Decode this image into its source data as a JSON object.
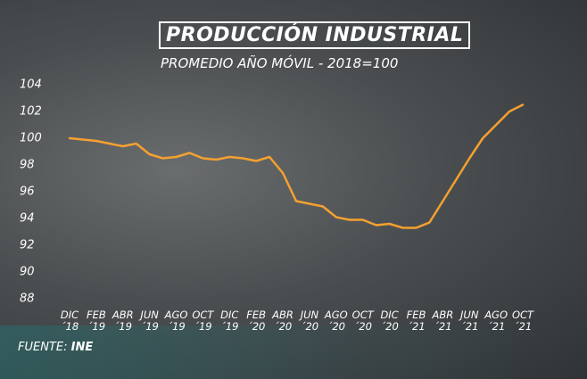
{
  "chart_data": {
    "type": "line",
    "title": "PRODUCCIÓN INDUSTRIAL",
    "subtitle": "PROMEDIO AÑO MÓVIL - 2018=100",
    "source_label": "FUENTE:",
    "source": "INE",
    "categories": [
      "DIC\n´18",
      null,
      "FEB\n´19",
      null,
      "ABR\n´19",
      null,
      "JUN\n´19",
      null,
      "AGO\n´19",
      null,
      "OCT\n´19",
      null,
      "DIC\n´19",
      null,
      "FEB\n´20",
      null,
      "ABR\n´20",
      null,
      "JUN\n´20",
      null,
      "AGO\n´20",
      null,
      "OCT\n´20",
      null,
      "DIC\n´20",
      null,
      "FEB\n´21",
      null,
      "ABR\n´21",
      null,
      "JUN\n´21",
      null,
      "AGO\n´21",
      null,
      "OCT\n´21"
    ],
    "series": [
      {
        "name": "Producción industrial",
        "color": "#f5a030",
        "values": [
          100.0,
          99.9,
          99.8,
          99.6,
          99.4,
          99.6,
          98.8,
          98.5,
          98.6,
          98.9,
          98.5,
          98.4,
          98.6,
          98.5,
          98.3,
          98.6,
          97.4,
          95.3,
          95.1,
          94.9,
          94.1,
          93.9,
          93.9,
          93.5,
          93.6,
          93.3,
          93.3,
          93.7,
          95.3,
          96.9,
          98.5,
          100.0,
          101.0,
          102.0,
          102.5
        ]
      }
    ],
    "ylim": [
      88,
      104
    ],
    "yticks": [
      88,
      90,
      92,
      94,
      96,
      98,
      100,
      102,
      104
    ],
    "grid": false
  }
}
